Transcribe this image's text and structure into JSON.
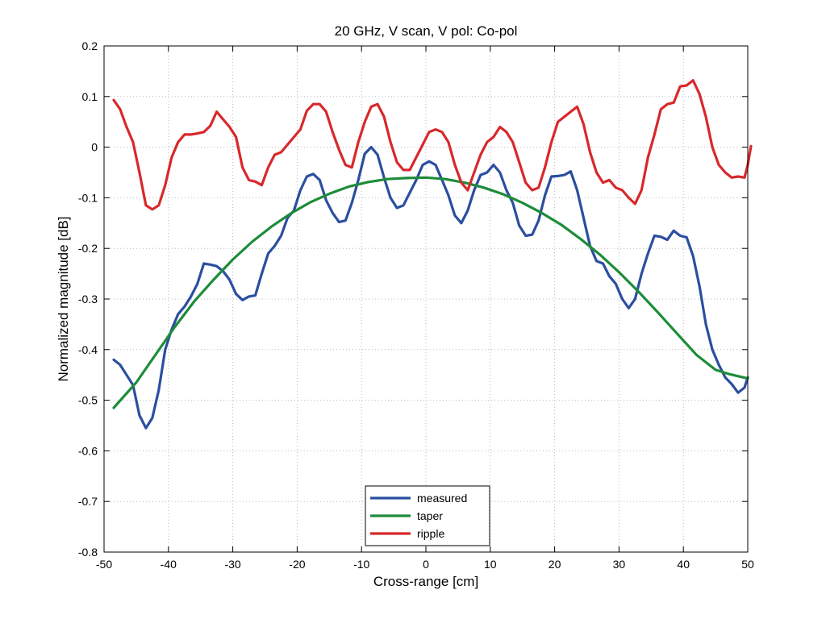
{
  "chart_data": {
    "type": "line",
    "title": "20 GHz, V scan, V pol: Co-pol",
    "xlabel": "Cross-range [cm]",
    "ylabel": "Normalized magnitude [dB]",
    "xlim": [
      -50,
      50
    ],
    "ylim": [
      -0.8,
      0.2
    ],
    "xticks": [
      -50,
      -40,
      -30,
      -20,
      -10,
      0,
      10,
      20,
      30,
      40,
      50
    ],
    "yticks": [
      -0.8,
      -0.7,
      -0.6,
      -0.5,
      -0.4,
      -0.3,
      -0.2,
      -0.1,
      0,
      0.1,
      0.2
    ],
    "grid": true,
    "legend_position": "bottom-center",
    "series": [
      {
        "name": "measured",
        "color": "#2b4ea0",
        "points": [
          [
            -48.5,
            -0.42
          ],
          [
            -47.5,
            -0.43
          ],
          [
            -46.5,
            -0.45
          ],
          [
            -45.5,
            -0.47
          ],
          [
            -44.5,
            -0.53
          ],
          [
            -43.5,
            -0.555
          ],
          [
            -42.5,
            -0.535
          ],
          [
            -41.5,
            -0.48
          ],
          [
            -40.5,
            -0.4
          ],
          [
            -39.5,
            -0.36
          ],
          [
            -38.5,
            -0.33
          ],
          [
            -37.5,
            -0.315
          ],
          [
            -36.5,
            -0.295
          ],
          [
            -35.5,
            -0.27
          ],
          [
            -34.5,
            -0.23
          ],
          [
            -33.5,
            -0.232
          ],
          [
            -32.5,
            -0.235
          ],
          [
            -31.5,
            -0.245
          ],
          [
            -30.5,
            -0.262
          ],
          [
            -29.5,
            -0.29
          ],
          [
            -28.5,
            -0.302
          ],
          [
            -27.5,
            -0.295
          ],
          [
            -26.5,
            -0.293
          ],
          [
            -25.5,
            -0.25
          ],
          [
            -24.5,
            -0.21
          ],
          [
            -23.5,
            -0.195
          ],
          [
            -22.5,
            -0.175
          ],
          [
            -21.5,
            -0.14
          ],
          [
            -20.5,
            -0.125
          ],
          [
            -19.5,
            -0.085
          ],
          [
            -18.5,
            -0.058
          ],
          [
            -17.5,
            -0.053
          ],
          [
            -16.5,
            -0.065
          ],
          [
            -15.5,
            -0.105
          ],
          [
            -14.5,
            -0.13
          ],
          [
            -13.5,
            -0.148
          ],
          [
            -12.5,
            -0.145
          ],
          [
            -11.5,
            -0.11
          ],
          [
            -10.5,
            -0.065
          ],
          [
            -9.5,
            -0.013
          ],
          [
            -8.5,
            0.0
          ],
          [
            -7.5,
            -0.015
          ],
          [
            -6.5,
            -0.06
          ],
          [
            -5.5,
            -0.1
          ],
          [
            -4.5,
            -0.12
          ],
          [
            -3.5,
            -0.115
          ],
          [
            -2.5,
            -0.09
          ],
          [
            -1.5,
            -0.065
          ],
          [
            -0.5,
            -0.035
          ],
          [
            0.5,
            -0.028
          ],
          [
            1.5,
            -0.035
          ],
          [
            2.5,
            -0.065
          ],
          [
            3.5,
            -0.095
          ],
          [
            4.5,
            -0.135
          ],
          [
            5.5,
            -0.15
          ],
          [
            6.5,
            -0.125
          ],
          [
            7.5,
            -0.085
          ],
          [
            8.5,
            -0.055
          ],
          [
            9.5,
            -0.05
          ],
          [
            10.5,
            -0.035
          ],
          [
            11.5,
            -0.05
          ],
          [
            12.5,
            -0.085
          ],
          [
            13.5,
            -0.11
          ],
          [
            14.5,
            -0.155
          ],
          [
            15.5,
            -0.175
          ],
          [
            16.5,
            -0.173
          ],
          [
            17.5,
            -0.145
          ],
          [
            18.5,
            -0.095
          ],
          [
            19.5,
            -0.058
          ],
          [
            20.5,
            -0.057
          ],
          [
            21.5,
            -0.055
          ],
          [
            22.5,
            -0.048
          ],
          [
            23.5,
            -0.085
          ],
          [
            24.5,
            -0.14
          ],
          [
            25.5,
            -0.195
          ],
          [
            26.5,
            -0.225
          ],
          [
            27.5,
            -0.23
          ],
          [
            28.5,
            -0.255
          ],
          [
            29.5,
            -0.27
          ],
          [
            30.5,
            -0.3
          ],
          [
            31.5,
            -0.318
          ],
          [
            32.5,
            -0.3
          ],
          [
            33.5,
            -0.25
          ],
          [
            34.5,
            -0.21
          ],
          [
            35.5,
            -0.175
          ],
          [
            36.5,
            -0.177
          ],
          [
            37.5,
            -0.183
          ],
          [
            38.5,
            -0.165
          ],
          [
            39.5,
            -0.175
          ],
          [
            40.5,
            -0.178
          ],
          [
            41.5,
            -0.215
          ],
          [
            42.5,
            -0.275
          ],
          [
            43.5,
            -0.35
          ],
          [
            44.5,
            -0.4
          ],
          [
            45.5,
            -0.43
          ],
          [
            46.5,
            -0.455
          ],
          [
            47.5,
            -0.468
          ],
          [
            48.5,
            -0.485
          ],
          [
            49.5,
            -0.475
          ],
          [
            50,
            -0.455
          ]
        ]
      },
      {
        "name": "taper",
        "color": "#1e8c3a",
        "points": [
          [
            -48.5,
            -0.515
          ],
          [
            -45,
            -0.465
          ],
          [
            -42,
            -0.41
          ],
          [
            -39,
            -0.355
          ],
          [
            -36,
            -0.305
          ],
          [
            -33,
            -0.262
          ],
          [
            -30,
            -0.222
          ],
          [
            -27,
            -0.187
          ],
          [
            -24,
            -0.157
          ],
          [
            -21,
            -0.131
          ],
          [
            -18,
            -0.109
          ],
          [
            -15,
            -0.092
          ],
          [
            -12,
            -0.078
          ],
          [
            -9,
            -0.069
          ],
          [
            -6,
            -0.063
          ],
          [
            -3,
            -0.061
          ],
          [
            0,
            -0.06
          ],
          [
            3,
            -0.063
          ],
          [
            6,
            -0.07
          ],
          [
            9,
            -0.08
          ],
          [
            12,
            -0.093
          ],
          [
            15,
            -0.11
          ],
          [
            18,
            -0.13
          ],
          [
            21,
            -0.153
          ],
          [
            24,
            -0.181
          ],
          [
            27,
            -0.212
          ],
          [
            30,
            -0.247
          ],
          [
            33,
            -0.285
          ],
          [
            36,
            -0.326
          ],
          [
            39,
            -0.368
          ],
          [
            42,
            -0.41
          ],
          [
            45,
            -0.44
          ],
          [
            47,
            -0.448
          ],
          [
            50,
            -0.457
          ]
        ]
      },
      {
        "name": "ripple",
        "color": "#d8282b",
        "points": [
          [
            -48.5,
            0.093
          ],
          [
            -47.5,
            0.075
          ],
          [
            -46.5,
            0.04
          ],
          [
            -45.5,
            0.01
          ],
          [
            -44.5,
            -0.05
          ],
          [
            -43.5,
            -0.115
          ],
          [
            -42.5,
            -0.123
          ],
          [
            -41.5,
            -0.115
          ],
          [
            -40.5,
            -0.075
          ],
          [
            -39.5,
            -0.02
          ],
          [
            -38.5,
            0.01
          ],
          [
            -37.5,
            0.025
          ],
          [
            -36.5,
            0.025
          ],
          [
            -35.5,
            0.027
          ],
          [
            -34.5,
            0.03
          ],
          [
            -33.5,
            0.042
          ],
          [
            -32.5,
            0.07
          ],
          [
            -31.5,
            0.055
          ],
          [
            -30.5,
            0.04
          ],
          [
            -29.5,
            0.02
          ],
          [
            -28.5,
            -0.04
          ],
          [
            -27.5,
            -0.065
          ],
          [
            -26.5,
            -0.068
          ],
          [
            -25.5,
            -0.075
          ],
          [
            -24.5,
            -0.04
          ],
          [
            -23.5,
            -0.015
          ],
          [
            -22.5,
            -0.01
          ],
          [
            -21.5,
            0.005
          ],
          [
            -20.5,
            0.02
          ],
          [
            -19.5,
            0.035
          ],
          [
            -18.5,
            0.072
          ],
          [
            -17.5,
            0.085
          ],
          [
            -16.5,
            0.085
          ],
          [
            -15.5,
            0.07
          ],
          [
            -14.5,
            0.03
          ],
          [
            -13.5,
            -0.005
          ],
          [
            -12.5,
            -0.035
          ],
          [
            -11.5,
            -0.04
          ],
          [
            -10.5,
            0.01
          ],
          [
            -9.5,
            0.05
          ],
          [
            -8.5,
            0.08
          ],
          [
            -7.5,
            0.085
          ],
          [
            -6.5,
            0.06
          ],
          [
            -5.5,
            0.01
          ],
          [
            -4.5,
            -0.03
          ],
          [
            -3.5,
            -0.045
          ],
          [
            -2.5,
            -0.045
          ],
          [
            -1.5,
            -0.02
          ],
          [
            -0.5,
            0.005
          ],
          [
            0.5,
            0.03
          ],
          [
            1.5,
            0.035
          ],
          [
            2.5,
            0.03
          ],
          [
            3.5,
            0.01
          ],
          [
            4.5,
            -0.035
          ],
          [
            5.5,
            -0.07
          ],
          [
            6.5,
            -0.085
          ],
          [
            7.5,
            -0.05
          ],
          [
            8.5,
            -0.015
          ],
          [
            9.5,
            0.01
          ],
          [
            10.5,
            0.02
          ],
          [
            11.5,
            0.04
          ],
          [
            12.5,
            0.03
          ],
          [
            13.5,
            0.01
          ],
          [
            14.5,
            -0.03
          ],
          [
            15.5,
            -0.07
          ],
          [
            16.5,
            -0.085
          ],
          [
            17.5,
            -0.08
          ],
          [
            18.5,
            -0.04
          ],
          [
            19.5,
            0.01
          ],
          [
            20.5,
            0.05
          ],
          [
            21.5,
            0.06
          ],
          [
            22.5,
            0.07
          ],
          [
            23.5,
            0.08
          ],
          [
            24.5,
            0.045
          ],
          [
            25.5,
            -0.01
          ],
          [
            26.5,
            -0.05
          ],
          [
            27.5,
            -0.07
          ],
          [
            28.5,
            -0.065
          ],
          [
            29.5,
            -0.08
          ],
          [
            30.5,
            -0.085
          ],
          [
            31.5,
            -0.1
          ],
          [
            32.5,
            -0.112
          ],
          [
            33.5,
            -0.085
          ],
          [
            34.5,
            -0.02
          ],
          [
            35.5,
            0.025
          ],
          [
            36.5,
            0.075
          ],
          [
            37.5,
            0.085
          ],
          [
            38.5,
            0.088
          ],
          [
            39.5,
            0.12
          ],
          [
            40.5,
            0.122
          ],
          [
            41.5,
            0.132
          ],
          [
            42.5,
            0.105
          ],
          [
            43.5,
            0.06
          ],
          [
            44.5,
            0.0
          ],
          [
            45.5,
            -0.035
          ],
          [
            46.5,
            -0.05
          ],
          [
            47.5,
            -0.06
          ],
          [
            48.5,
            -0.058
          ],
          [
            49.5,
            -0.06
          ],
          [
            50,
            -0.035
          ],
          [
            50.5,
            0.002
          ]
        ]
      }
    ]
  }
}
